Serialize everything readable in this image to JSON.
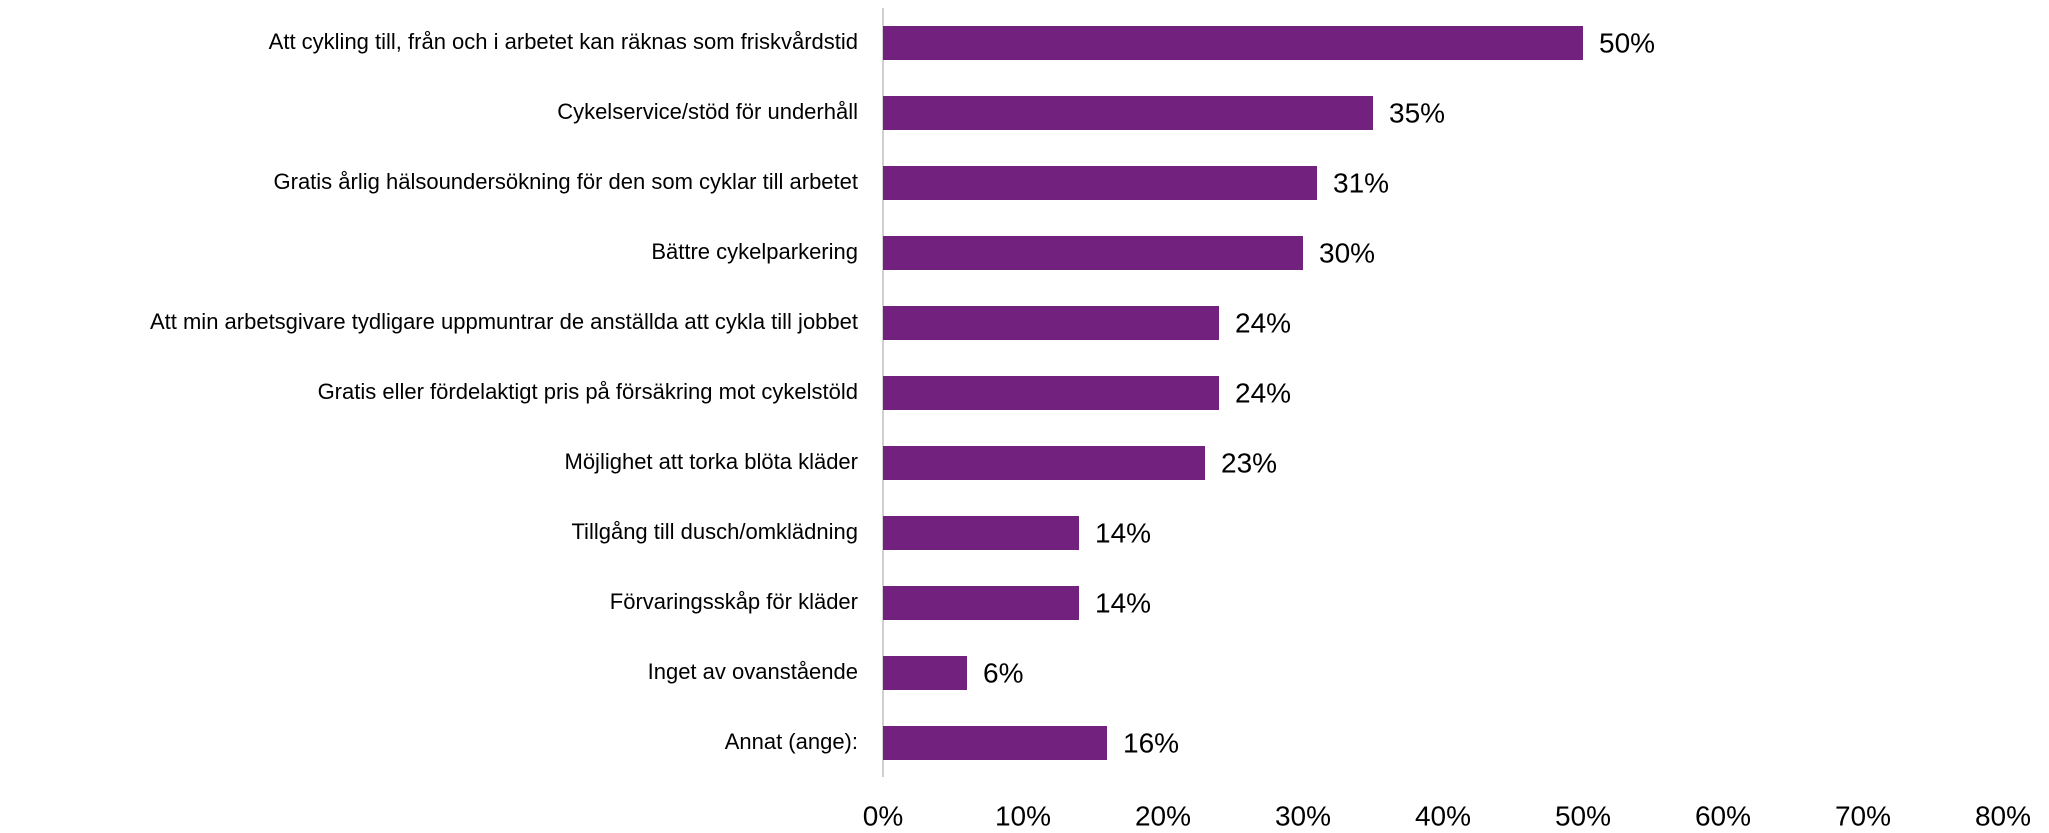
{
  "chart_data": {
    "type": "bar",
    "orientation": "horizontal",
    "categories": [
      "Att cykling till, från och i arbetet kan räknas som friskvårdstid",
      "Cykelservice/stöd för underhåll",
      "Gratis årlig hälsoundersökning för den som cyklar till arbetet",
      "Bättre cykelparkering",
      "Att min arbetsgivare tydligare uppmuntrar de anställda att cykla till jobbet",
      "Gratis eller fördelaktigt pris på försäkring mot cykelstöld",
      "Möjlighet att torka blöta kläder",
      "Tillgång till dusch/omklädning",
      "Förvaringsskåp för kläder",
      "Inget av ovanstående",
      "Annat (ange):"
    ],
    "values": [
      50,
      35,
      31,
      30,
      24,
      24,
      23,
      14,
      14,
      6,
      16
    ],
    "value_labels": [
      "50%",
      "35%",
      "31%",
      "30%",
      "24%",
      "24%",
      "23%",
      "14%",
      "14%",
      "6%",
      "16%"
    ],
    "color": "#72217f",
    "xlim": [
      0,
      80
    ],
    "xticks": [
      {
        "value": 0,
        "label": "0%"
      },
      {
        "value": 10,
        "label": "10%"
      },
      {
        "value": 20,
        "label": "20%"
      },
      {
        "value": 30,
        "label": "30%"
      },
      {
        "value": 40,
        "label": "40%"
      },
      {
        "value": 50,
        "label": "50%"
      },
      {
        "value": 60,
        "label": "60%"
      },
      {
        "value": 70,
        "label": "70%"
      },
      {
        "value": 80,
        "label": "80%"
      }
    ],
    "grid": false
  }
}
